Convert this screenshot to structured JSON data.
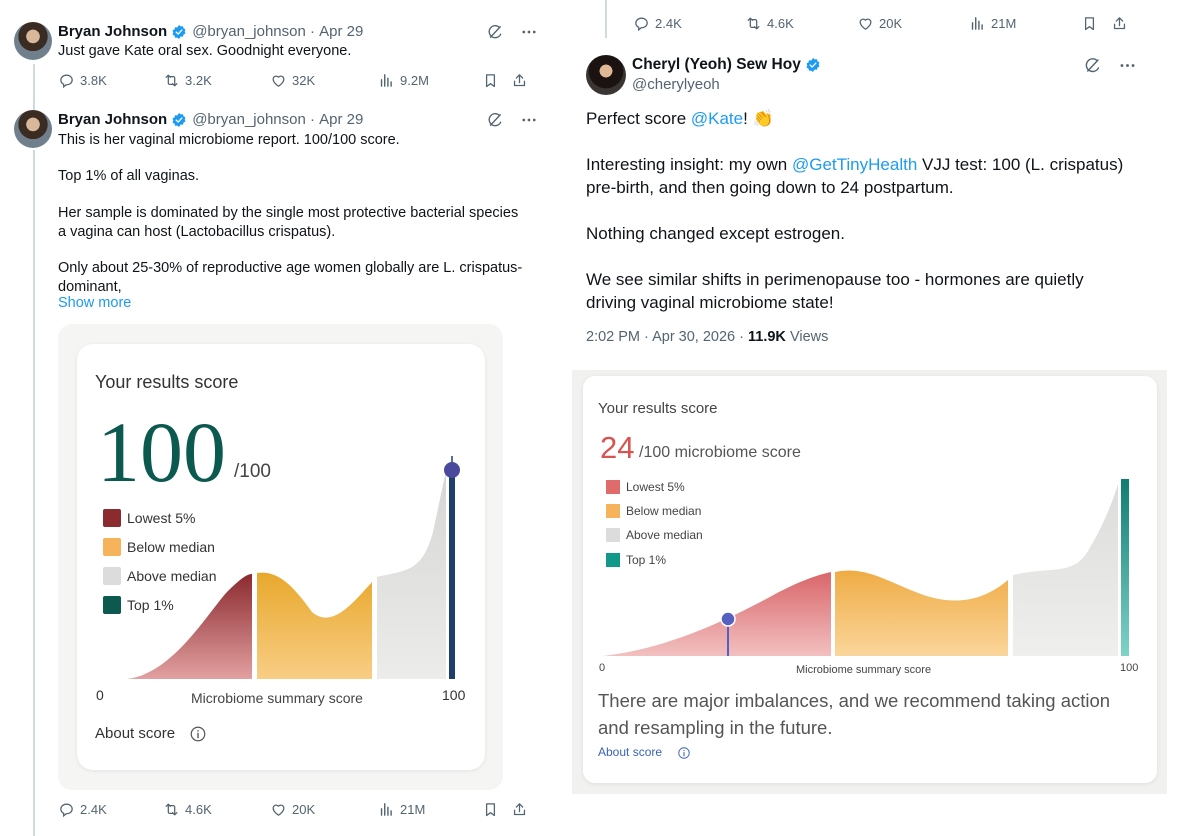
{
  "left": {
    "tweet1": {
      "name": "Bryan Johnson",
      "handle": "@bryan_johnson",
      "date": "Apr 29",
      "text": "Just gave Kate oral sex. Goodnight everyone.",
      "replies": "3.8K",
      "reposts": "3.2K",
      "likes": "32K",
      "views": "9.2M"
    },
    "tweet2": {
      "name": "Bryan Johnson",
      "handle": "@bryan_johnson",
      "date": "Apr 29",
      "text_p1": "This is her vaginal microbiome report. 100/100 score.",
      "text_p2": "Top 1% of all vaginas.",
      "text_p3": "Her sample is dominated by the single most protective bacterial species a vagina can host (Lactobacillus crispatus).",
      "text_p4": "Only about 25-30% of reproductive age women globally are L. crispatus-dominant,",
      "show_more": "Show more",
      "replies": "2.4K",
      "reposts": "4.6K",
      "likes": "20K",
      "views": "21M"
    },
    "report": {
      "heading": "Your results score",
      "score": "100",
      "score_suffix": "/100",
      "legend": [
        "Lowest 5%",
        "Below median",
        "Above median",
        "Top 1%"
      ],
      "axis_min": "0",
      "axis_max": "100",
      "axis_label": "Microbiome summary score",
      "about": "About score"
    }
  },
  "right": {
    "top_actions": {
      "replies": "2.4K",
      "reposts": "4.6K",
      "likes": "20K",
      "views": "21M"
    },
    "tweet": {
      "name": "Cheryl (Yeoh) Sew Hoy",
      "handle": "@cherylyeoh",
      "line1_prefix": "Perfect score ",
      "line1_mention": "@Kate",
      "line1_suffix": "! 👏",
      "p2_prefix": "Interesting insight: my own ",
      "p2_mention": "@GetTinyHealth",
      "p2_suffix": " VJJ test: 100 (L. crispatus) pre-birth, and then going down to 24 postpartum.",
      "p3": "Nothing changed except estrogen.",
      "p4": "We see similar shifts in perimenopause too - hormones are quietly driving vaginal microbiome state!",
      "time": "2:02 PM · Apr 30, 2026 · ",
      "views_count": "11.9K",
      "views_label": " Views"
    },
    "report": {
      "heading": "Your results score",
      "score": "24",
      "score_suffix": "/100 microbiome score",
      "legend": [
        "Lowest 5%",
        "Below median",
        "Above median",
        "Top 1%"
      ],
      "axis_min": "0",
      "axis_max": "100",
      "axis_label": "Microbiome summary score",
      "message": "There are major imbalances, and we recommend taking action and resampling in the future.",
      "about": "About score"
    }
  },
  "colors": {
    "lowest": "#8b2a2f",
    "below": "#f5b35b",
    "above": "#dcdcdc",
    "top": "#0c5a4f",
    "score_green": "#0c5a4f",
    "score_red": "#d9534f",
    "link": "#1d9bf0"
  },
  "chart_data": [
    {
      "type": "area",
      "title": "Your results score",
      "xlabel": "Microbiome summary score",
      "xlim": [
        0,
        100
      ],
      "marker_value": 100,
      "series": [
        {
          "name": "Lowest 5%"
        },
        {
          "name": "Below median"
        },
        {
          "name": "Above median"
        },
        {
          "name": "Top 1%"
        }
      ]
    },
    {
      "type": "area",
      "title": "Your results score",
      "xlabel": "Microbiome summary score",
      "xlim": [
        0,
        100
      ],
      "marker_value": 24,
      "series": [
        {
          "name": "Lowest 5%"
        },
        {
          "name": "Below median"
        },
        {
          "name": "Above median"
        },
        {
          "name": "Top 1%"
        }
      ]
    }
  ]
}
